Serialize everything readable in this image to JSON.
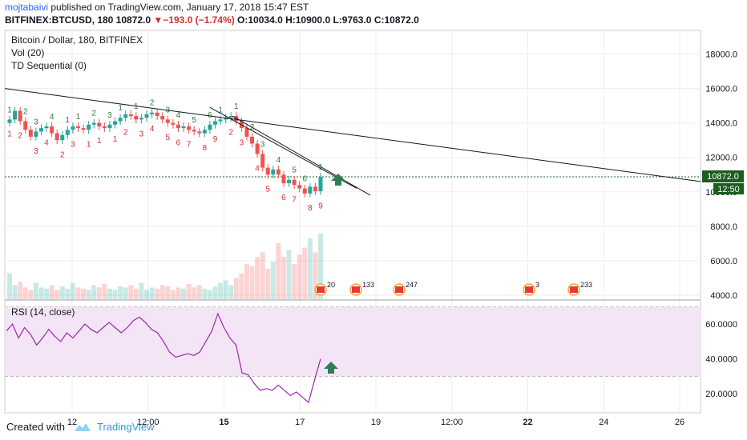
{
  "header": {
    "author": "mojtabaivi",
    "published_text": " published on TradingView.com, January 17, 2018 15:47 EST",
    "symbol_line_prefix": "BITFINEX:BTCUSD, 180  10872.0 ",
    "change_arrow": "▼",
    "change_text": "−193.0 (−1.74%)",
    "ohlc_text": " O:10034.0 H:10900.0 L:9763.0 C:10872.0"
  },
  "legend": {
    "title": "Bitcoin / Dollar, 180, BITFINEX",
    "vol": "Vol (20)",
    "td": "TD Sequential (0)"
  },
  "rsi": {
    "label": "RSI (14, close)"
  },
  "footer": {
    "created_with": "Created with",
    "brand": "TradingView"
  },
  "colors": {
    "up": "#26a69a",
    "down": "#ef5350",
    "td_up": "#2e7d32",
    "td_down": "#d32f2f",
    "rsi": "#9c27b0",
    "rsi_band": "#f3e5f5",
    "price_label": "#1b5e20"
  },
  "price_labels": {
    "last": "10872.0",
    "countdown": "12:50"
  },
  "chart_data": [
    {
      "type": "candlestick",
      "title": "Bitcoin / Dollar, 180, BITFINEX",
      "ylim": [
        4000,
        19000
      ],
      "y_ticks": [
        "18000.0",
        "16000.0",
        "14000.0",
        "12000.0",
        "10000.0",
        "8000.0",
        "6000.0",
        "4000.0"
      ],
      "x_tick_labels": [
        "12",
        "12:00",
        "15",
        "17",
        "19",
        "12:00",
        "22",
        "24",
        "26"
      ],
      "last_price": 10872.0,
      "close_series": [
        14200,
        14700,
        14100,
        13600,
        13200,
        13500,
        13700,
        13800,
        13400,
        13000,
        13300,
        13600,
        13800,
        13700,
        13600,
        13900,
        14000,
        13800,
        13700,
        13900,
        14100,
        14300,
        14500,
        14400,
        14200,
        14300,
        14500,
        14600,
        14400,
        14200,
        14000,
        13900,
        13700,
        13800,
        13600,
        13500,
        13400,
        13600,
        13900,
        14100,
        14200,
        14300,
        14400,
        14100,
        13700,
        13200,
        12800,
        12200,
        11400,
        11000,
        11300,
        11000,
        10500,
        10700,
        10400,
        10200,
        9900,
        10300,
        10034,
        10872
      ],
      "td_labels_up": [
        "1",
        "2",
        "3",
        "4",
        "1",
        "1",
        "2",
        "3",
        "1",
        "1",
        "2",
        "3",
        "4",
        "5",
        "6",
        "1",
        "1",
        "2",
        "3",
        "4",
        "5",
        "6",
        "1"
      ],
      "td_labels_down": [
        "1",
        "2",
        "3",
        "4",
        "2",
        "3",
        "1",
        "1",
        "1",
        "2",
        "3",
        "4",
        "5",
        "6",
        "7",
        "8",
        "9",
        "2",
        "3",
        "4",
        "5",
        "6",
        "7",
        "8",
        "9"
      ],
      "volume_series": [
        22,
        12,
        15,
        10,
        8,
        14,
        10,
        9,
        12,
        8,
        11,
        9,
        14,
        10,
        9,
        8,
        12,
        10,
        13,
        9,
        8,
        11,
        10,
        12,
        9,
        14,
        8,
        10,
        9,
        12,
        11,
        8,
        10,
        9,
        13,
        10,
        12,
        9,
        8,
        11,
        14,
        16,
        12,
        18,
        22,
        30,
        28,
        36,
        40,
        26,
        32,
        48,
        36,
        42,
        30,
        38,
        44,
        52,
        40,
        56
      ],
      "trendlines": "three descending lines",
      "event_markers": [
        "20",
        "133",
        "247",
        "3",
        "233"
      ]
    },
    {
      "type": "line",
      "title": "RSI (14, close)",
      "ylim": [
        10,
        72
      ],
      "y_ticks": [
        "60.0000",
        "40.0000",
        "20.0000"
      ],
      "bands": [
        70,
        30
      ],
      "values": [
        56,
        60,
        52,
        58,
        54,
        48,
        52,
        57,
        53,
        50,
        55,
        52,
        56,
        60,
        57,
        55,
        58,
        61,
        58,
        55,
        58,
        62,
        64,
        61,
        57,
        55,
        50,
        44,
        41,
        42,
        43,
        42,
        44,
        50,
        56,
        66,
        58,
        52,
        48,
        32,
        31,
        26,
        22,
        23,
        22,
        25,
        22,
        19,
        21,
        18,
        15,
        28,
        40
      ]
    }
  ]
}
